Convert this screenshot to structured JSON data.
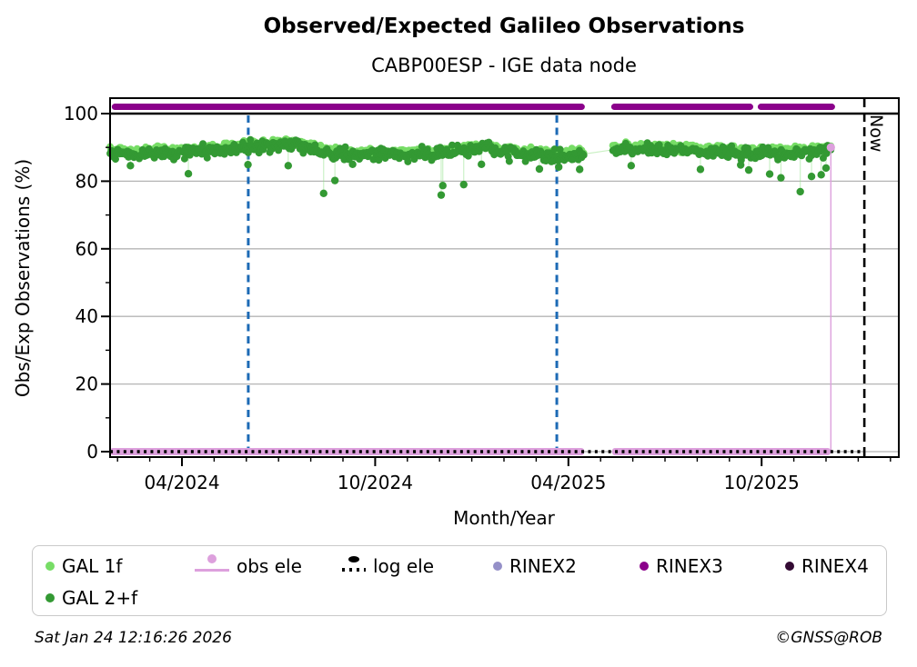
{
  "title": "Observed/Expected Galileo Observations",
  "subtitle": "CABP00ESP - IGE data node",
  "now_label": "Now",
  "footer": {
    "timestamp": "Sat Jan 24 12:16:26 2026",
    "credit": "©GNSS@ROB"
  },
  "colors": {
    "gal1f": "#77dd66",
    "gal2f": "#339933",
    "obs_ele": "#dda0dd",
    "log_ele": "#000000",
    "rinex2": "#9590c8",
    "rinex3": "#8b008b",
    "rinex4": "#330a33",
    "event_line_blue": "#1c6ab5",
    "grid_gray": "#b4b4b4",
    "hundred_line": "#000000",
    "now_line": "#000000"
  },
  "legend": {
    "items": [
      {
        "label": "GAL 1f",
        "marker": "dot",
        "color": "#77dd66"
      },
      {
        "label": "obs ele",
        "marker": "line-dot",
        "color": "#dda0dd"
      },
      {
        "label": "log ele",
        "marker": "dotted-line-dot",
        "color": "#000000"
      },
      {
        "label": "RINEX2",
        "marker": "dot",
        "color": "#9590c8"
      },
      {
        "label": "RINEX3",
        "marker": "dot",
        "color": "#8b008b"
      },
      {
        "label": "RINEX4",
        "marker": "dot",
        "color": "#330a33"
      },
      {
        "label": "GAL 2+f",
        "marker": "dot",
        "color": "#339933"
      }
    ]
  },
  "chart_data": {
    "type": "scatter",
    "title": "Observed/Expected Galileo Observations",
    "subtitle": "CABP00ESP - IGE data node",
    "xlabel": "Month/Year",
    "ylabel": "Obs/Exp Observations (%)",
    "grid": "horizontal-gray",
    "legend_position": "below",
    "x_tick_labels": [
      "04/2024",
      "10/2024",
      "04/2025",
      "10/2025"
    ],
    "x_tick_months": [
      0,
      6,
      12,
      18
    ],
    "x_minor_tick_step_months": 1,
    "x_range_months": [
      -2.23,
      22.26
    ],
    "y_ticks": [
      0,
      20,
      40,
      60,
      80,
      100
    ],
    "y_minor_ticks": [
      10,
      30,
      50,
      70,
      90
    ],
    "y_range": [
      -1.6,
      104.6
    ],
    "note_month_zero": "months measured from 2024-04; plotted span late Jan 2024 to mid Dec 2025",
    "series_summary": [
      {
        "name": "GAL 1f",
        "type": "scatter-daily",
        "offset_from_mean": 0.75,
        "jitter_sd": 0.55
      },
      {
        "name": "GAL 2+f",
        "type": "scatter-daily",
        "offset_from_mean": -0.15,
        "jitter_sd": 0.9
      }
    ],
    "gal_monthly_mean_anchors": [
      [
        -2.23,
        88.6
      ],
      [
        -1.5,
        88.2
      ],
      [
        -1,
        88.4
      ],
      [
        -0.5,
        88.3
      ],
      [
        0,
        88.7
      ],
      [
        0.5,
        88.9
      ],
      [
        1,
        89.2
      ],
      [
        1.5,
        89.6
      ],
      [
        2,
        90.1
      ],
      [
        2.5,
        90.5
      ],
      [
        3,
        90.9
      ],
      [
        3.5,
        90.7
      ],
      [
        4,
        89.8
      ],
      [
        4.5,
        88.5
      ],
      [
        5,
        88.0
      ],
      [
        5.5,
        87.9
      ],
      [
        6,
        88.0
      ],
      [
        6.5,
        87.8
      ],
      [
        7,
        88.0
      ],
      [
        7.5,
        88.3
      ],
      [
        8,
        88.6
      ],
      [
        8.5,
        89.0
      ],
      [
        9,
        89.4
      ],
      [
        9.5,
        89.8
      ],
      [
        10,
        89.0
      ],
      [
        10.5,
        88.3
      ],
      [
        11,
        87.9
      ],
      [
        11.5,
        87.6
      ],
      [
        12,
        87.8
      ],
      [
        12.49,
        88.0
      ],
      [
        13.36,
        89.3
      ],
      [
        14,
        89.7
      ],
      [
        14.5,
        89.8
      ],
      [
        15,
        89.4
      ],
      [
        15.5,
        89.2
      ],
      [
        16,
        89.0
      ],
      [
        16.5,
        88.8
      ],
      [
        17,
        88.7
      ],
      [
        17.5,
        88.5
      ],
      [
        18,
        88.4
      ],
      [
        18.5,
        88.5
      ],
      [
        19,
        88.6
      ],
      [
        19.5,
        88.8
      ],
      [
        20,
        89.3
      ],
      [
        20.15,
        89.8
      ]
    ],
    "gal2f_outliers": [
      [
        -1.6,
        84.6
      ],
      [
        0.2,
        82.2
      ],
      [
        2.05,
        84.9
      ],
      [
        3.3,
        84.6
      ],
      [
        4.4,
        76.4
      ],
      [
        4.75,
        80.2
      ],
      [
        5.3,
        85.0
      ],
      [
        8.05,
        75.9
      ],
      [
        8.1,
        78.7
      ],
      [
        8.75,
        79.0
      ],
      [
        9.3,
        85.0
      ],
      [
        11.1,
        83.6
      ],
      [
        11.7,
        84.2
      ],
      [
        12.35,
        83.5
      ],
      [
        13.95,
        84.6
      ],
      [
        16.1,
        83.5
      ],
      [
        17.35,
        84.8
      ],
      [
        17.6,
        83.3
      ],
      [
        18.25,
        82.1
      ],
      [
        18.6,
        81.0
      ],
      [
        19.2,
        76.9
      ],
      [
        19.55,
        81.4
      ],
      [
        19.85,
        81.9
      ],
      [
        20.0,
        83.9
      ]
    ],
    "rinex3_band": {
      "value": 102,
      "segments_months": [
        [
          -2.18,
          12.51
        ],
        [
          13.33,
          17.74
        ],
        [
          17.88,
          20.28
        ]
      ]
    },
    "rinex2_points": [],
    "rinex4_points": [],
    "obs_ele": {
      "value": 0,
      "segments_months": [
        [
          -2.23,
          12.49
        ],
        [
          13.36,
          20.14
        ]
      ],
      "end_spike": {
        "month": 20.15,
        "value": 90
      }
    },
    "log_ele": {
      "value": 0,
      "segments_months": [
        [
          -2.23,
          21.19
        ]
      ]
    },
    "event_vlines_months": [
      2.06,
      11.64
    ],
    "now_month": 21.19,
    "data_gap_months": [
      12.49,
      13.36
    ]
  }
}
